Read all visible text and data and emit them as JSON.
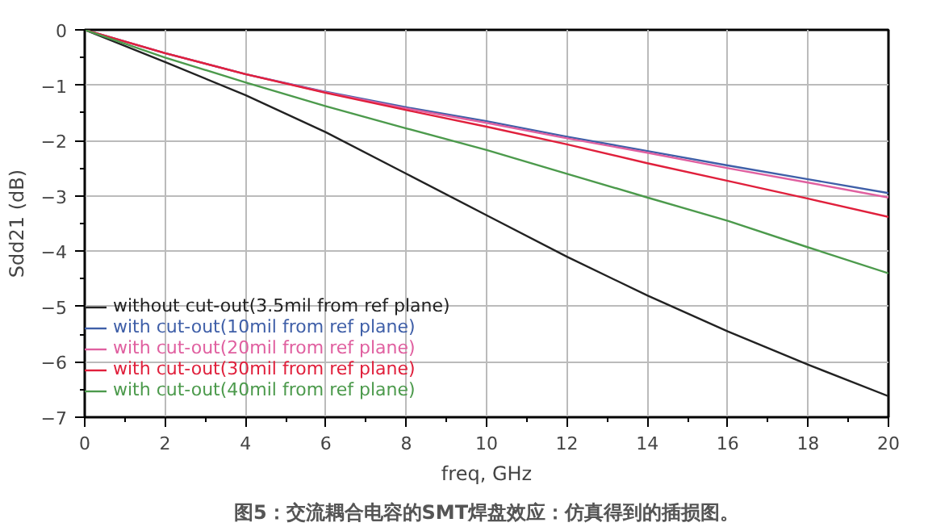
{
  "chart_data": {
    "type": "line",
    "xlabel": "freq, GHz",
    "ylabel": "Sdd21 (dB)",
    "x": [
      0,
      2,
      4,
      6,
      8,
      10,
      12,
      14,
      16,
      18,
      20
    ],
    "xlim": [
      0,
      20
    ],
    "ylim": [
      -7,
      0
    ],
    "xticks": [
      0,
      2,
      4,
      6,
      8,
      10,
      12,
      14,
      16,
      18,
      20
    ],
    "yticks": [
      -7,
      -6,
      -5,
      -4,
      -3,
      -2,
      -1,
      0
    ],
    "grid": true,
    "legend": "bottom left",
    "marker": "none",
    "line_style": "solid",
    "series": [
      {
        "name": "without cut-out(3.5mil from ref plane)",
        "color": "#222222",
        "values": [
          0,
          -0.58,
          -1.18,
          -1.85,
          -2.6,
          -3.35,
          -4.1,
          -4.8,
          -5.45,
          -6.05,
          -6.62
        ]
      },
      {
        "name": "with cut-out(10mil from ref plane)",
        "color": "#3f5fa8",
        "values": [
          0,
          -0.42,
          -0.8,
          -1.12,
          -1.4,
          -1.65,
          -1.93,
          -2.19,
          -2.45,
          -2.7,
          -2.95
        ]
      },
      {
        "name": "with cut-out(20mil from ref plane)",
        "color": "#e060a0",
        "values": [
          0,
          -0.42,
          -0.8,
          -1.13,
          -1.42,
          -1.68,
          -1.96,
          -2.22,
          -2.5,
          -2.76,
          -3.03
        ]
      },
      {
        "name": "with cut-out(30mil from ref plane)",
        "color": "#e0203c",
        "values": [
          0,
          -0.42,
          -0.8,
          -1.14,
          -1.45,
          -1.75,
          -2.07,
          -2.41,
          -2.73,
          -3.05,
          -3.38
        ]
      },
      {
        "name": "with cut-out(40mil from ref plane)",
        "color": "#4c9a4c",
        "values": [
          0,
          -0.5,
          -0.95,
          -1.38,
          -1.78,
          -2.17,
          -2.6,
          -3.03,
          -3.45,
          -3.93,
          -4.4
        ]
      }
    ],
    "annotations": [
      "图5：交流耦合电容的SMT焊盘效应：仿真得到的插损图。"
    ]
  }
}
